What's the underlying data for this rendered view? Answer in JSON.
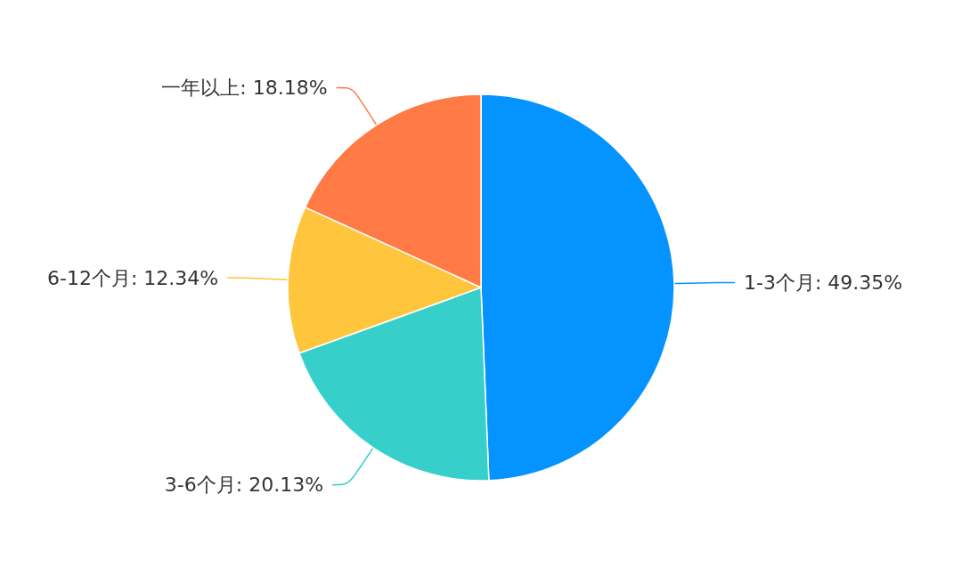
{
  "chart_data": {
    "type": "pie",
    "categories": [
      "1-3个月",
      "3-6个月",
      "6-12个月",
      "一年以上"
    ],
    "values": [
      49.35,
      20.13,
      12.34,
      18.18
    ],
    "colors": [
      "#0593ff",
      "#36cfc9",
      "#ffc53d",
      "#ff7a45"
    ],
    "value_labels": [
      "49.35%",
      "20.13%",
      "12.34%",
      "18.18%"
    ]
  }
}
